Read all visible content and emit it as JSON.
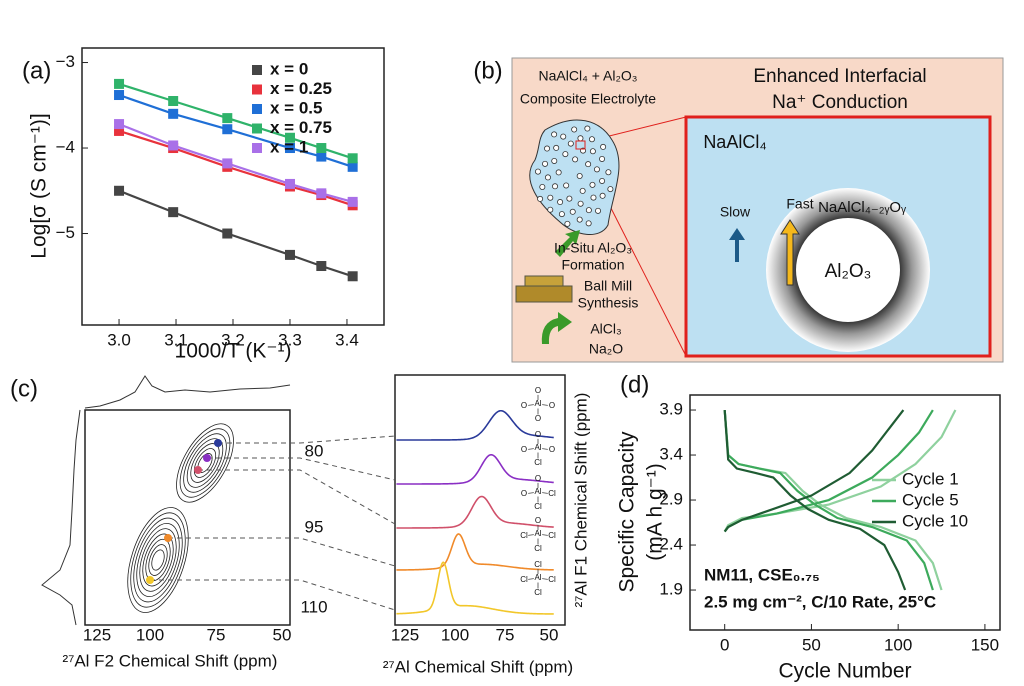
{
  "chart_data": [
    {
      "type": "line",
      "panel_label": "(a)",
      "marker": "square",
      "x_label": "1000/T (K⁻¹)",
      "y_label": "Log[σ (S cm⁻¹)]",
      "x": [
        3.0,
        3.095,
        3.19,
        3.3,
        3.355,
        3.41
      ],
      "series": [
        {
          "name": "x = 0",
          "color": "#454545",
          "values": [
            -4.5,
            -4.75,
            -5.0,
            -5.25,
            -5.38,
            -5.5
          ]
        },
        {
          "name": "x = 0.25",
          "color": "#e8323c",
          "values": [
            -3.8,
            -4.0,
            -4.22,
            -4.45,
            -4.55,
            -4.67
          ]
        },
        {
          "name": "x = 0.5",
          "color": "#1f6fd6",
          "values": [
            -3.38,
            -3.6,
            -3.78,
            -4.0,
            -4.1,
            -4.22
          ]
        },
        {
          "name": "x = 0.75",
          "color": "#2fb36a",
          "values": [
            -3.25,
            -3.45,
            -3.65,
            -3.88,
            -4.0,
            -4.12
          ]
        },
        {
          "name": "x = 1",
          "color": "#a970e8",
          "values": [
            -3.72,
            -3.97,
            -4.18,
            -4.42,
            -4.53,
            -4.63
          ]
        }
      ],
      "xlim": [
        2.935,
        3.465
      ],
      "xticks": [
        {
          "value": 3,
          "label": "3.0"
        },
        3.1,
        3.2,
        3.3,
        3.4
      ],
      "ylim": [
        -6.07,
        -2.83
      ],
      "yticks": [
        {
          "value": -3,
          "label": "−3"
        },
        {
          "value": -4,
          "label": "−4"
        },
        {
          "value": -5,
          "label": "−5"
        }
      ],
      "legend": "upper right"
    },
    {
      "type": "line",
      "panel_label": "(d)",
      "x_label": "Cycle Number",
      "y_label": [
        "Specific Capacity",
        "(mA h g⁻¹)"
      ],
      "series": [
        {
          "name": "Cycle 1",
          "color": "#8fd19e",
          "x": [
            0,
            2,
            10,
            30,
            60,
            90,
            110,
            125,
            133,
            null,
            0,
            2,
            8,
            20,
            35,
            45,
            55,
            70,
            90,
            110,
            120,
            125
          ],
          "values": [
            2.55,
            2.62,
            2.7,
            2.75,
            2.85,
            3.05,
            3.3,
            3.6,
            3.9,
            null,
            3.9,
            3.4,
            3.3,
            3.25,
            3.2,
            3.0,
            2.85,
            2.7,
            2.6,
            2.45,
            2.2,
            1.9
          ]
        },
        {
          "name": "Cycle 5",
          "color": "#3daa5c",
          "x": [
            0,
            2,
            10,
            30,
            60,
            85,
            100,
            112,
            120,
            null,
            0,
            2,
            8,
            20,
            32,
            42,
            52,
            65,
            85,
            105,
            115,
            120
          ],
          "values": [
            2.55,
            2.6,
            2.68,
            2.75,
            2.9,
            3.15,
            3.4,
            3.65,
            3.9,
            null,
            3.9,
            3.4,
            3.3,
            3.25,
            3.2,
            3.0,
            2.85,
            2.7,
            2.6,
            2.45,
            2.2,
            1.9
          ]
        },
        {
          "name": "Cycle 10",
          "color": "#1f5c33",
          "x": [
            0,
            2,
            10,
            25,
            50,
            72,
            85,
            95,
            103,
            null,
            0,
            2,
            7,
            18,
            28,
            38,
            48,
            60,
            78,
            92,
            100,
            104
          ],
          "values": [
            2.55,
            2.6,
            2.68,
            2.78,
            2.95,
            3.2,
            3.45,
            3.7,
            3.9,
            null,
            3.9,
            3.35,
            3.25,
            3.2,
            3.15,
            2.95,
            2.8,
            2.68,
            2.58,
            2.4,
            2.1,
            1.9
          ]
        }
      ],
      "xlim": [
        -20,
        158.7
      ],
      "xticks": [
        0,
        50,
        100,
        150
      ],
      "ylim": [
        1.456,
        4.067
      ],
      "yticks": [
        1.9,
        2.4,
        2.9,
        3.4,
        3.9
      ],
      "legend": "center right",
      "annotations": [
        "NM11, CSE₀.₇₅",
        "2.5 mg cm⁻², C/10 Rate, 25°C"
      ]
    }
  ],
  "diagram_b": {
    "panel_label": "(b)",
    "composite": [
      "NaAlCl₄ + Al₂O₃",
      "Composite Electrolyte"
    ],
    "heading": [
      "Enhanced Interfacial",
      "Na⁺ Conduction"
    ],
    "bulk": "NaAlCl₄",
    "shell": "NaAlCl₄₋₂ᵧOᵧ",
    "core": "Al₂O₃",
    "slow": "Slow",
    "fast": "Fast",
    "formation": [
      "In-Situ Al₂O₃",
      "Formation"
    ],
    "milling": [
      "Ball Mill",
      "Synthesis"
    ],
    "precursors": [
      "AlCl₃",
      "Na₂O"
    ]
  },
  "panel_c": {
    "panel_label": "(c)",
    "f2_label": "²⁷Al F2 Chemical Shift (ppm)",
    "f2_ticks": [
      125,
      100,
      75,
      50
    ],
    "f1_label": "²⁷Al F1 Chemical Shift (ppm)",
    "f1_ticks": [
      80,
      95,
      110
    ],
    "spectra_label": "²⁷Al Chemical Shift (ppm)",
    "spectra_ticks": [
      125,
      100,
      75,
      50
    ],
    "center_atom": "Al",
    "structures": [
      [
        "O",
        "O",
        "O",
        "O"
      ],
      [
        "O",
        "O",
        "O",
        "Cl"
      ],
      [
        "O",
        "O",
        "Cl",
        "Cl"
      ],
      [
        "O",
        "Cl",
        "Cl",
        "Cl"
      ],
      [
        "Cl",
        "Cl",
        "Cl",
        "Cl"
      ]
    ]
  }
}
